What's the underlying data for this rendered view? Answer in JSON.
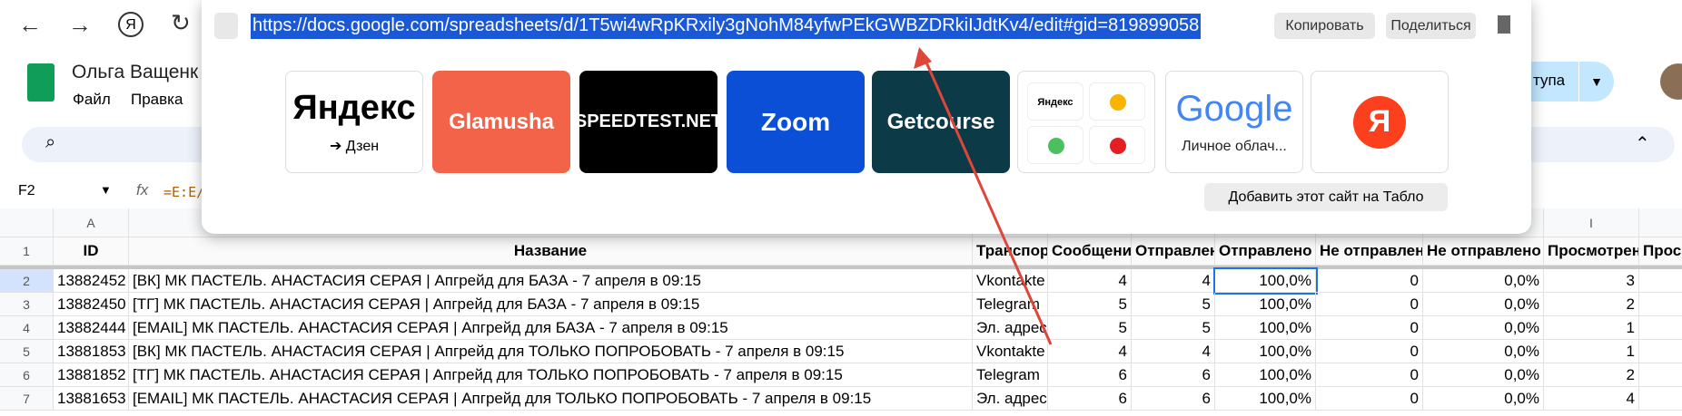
{
  "browser": {
    "url": "https://docs.google.com/spreadsheets/d/1T5wi4wRpKRxily3gNohM84yfwPEkGWBZDRkiIJdtKv4/edit#gid=819899058",
    "copy": "Копировать",
    "share": "Поделиться"
  },
  "tiles": [
    {
      "title": "Яндекс",
      "caption": "➔ Дзен"
    },
    {
      "title": "Glamusha"
    },
    {
      "title": "SPEEDTEST.NET"
    },
    {
      "title": "Zoom"
    },
    {
      "title": "Getcourse"
    },
    {
      "items": [
        "Яндекс"
      ]
    },
    {
      "title": "Google",
      "caption": "Личное облач..."
    },
    {
      "title": "Я"
    }
  ],
  "add_site": "Добавить этот сайт на Табло",
  "sheet": {
    "title": "Ольга Ващенк",
    "menu": [
      "Файл",
      "Правка"
    ],
    "access": "тупа",
    "cell_ref": "F2",
    "formula": "=E:E/",
    "columns": [
      "A",
      "I"
    ],
    "row_numbers": [
      "1",
      "2",
      "3",
      "4",
      "5",
      "6",
      "7"
    ],
    "headers": [
      "ID",
      "Название",
      "Транспорт",
      "Сообщений",
      "Отправлено",
      "Отправлено %",
      "Не отправлено",
      "Не отправлено %",
      "Просмотрено",
      "Просм"
    ],
    "rows": [
      [
        "13882452",
        "[ВК]  МК ПАСТЕЛЬ. АНАСТАСИЯ СЕРАЯ | Апгрейд для БАЗА - 7 апреля в 09:15",
        "Vkontakte",
        "4",
        "4",
        "100,0%",
        "0",
        "0,0%",
        "3"
      ],
      [
        "13882450",
        "[ТГ] МК ПАСТЕЛЬ. АНАСТАСИЯ СЕРАЯ | Апгрейд для БАЗА - 7 апреля в 09:15",
        "Telegram",
        "5",
        "5",
        "100,0%",
        "0",
        "0,0%",
        "2"
      ],
      [
        "13882444",
        "[EMAIL] МК ПАСТЕЛЬ. АНАСТАСИЯ СЕРАЯ | Апгрейд для БАЗА - 7 апреля в 09:15",
        "Эл. адрес",
        "5",
        "5",
        "100,0%",
        "0",
        "0,0%",
        "1"
      ],
      [
        "13881853",
        "[ВК]  МК ПАСТЕЛЬ. АНАСТАСИЯ СЕРАЯ | Апгрейд для ТОЛЬКО ПОПРОБОВАТЬ - 7 апреля в 09:15",
        "Vkontakte",
        "4",
        "4",
        "100,0%",
        "0",
        "0,0%",
        "1"
      ],
      [
        "13881852",
        "[ТГ] МК ПАСТЕЛЬ. АНАСТАСИЯ СЕРАЯ | Апгрейд для ТОЛЬКО ПОПРОБОВАТЬ - 7 апреля в 09:15",
        "Telegram",
        "6",
        "6",
        "100,0%",
        "0",
        "0,0%",
        "2"
      ],
      [
        "13881653",
        "[EMAIL] МК ПАСТЕЛЬ. АНАСТАСИЯ СЕРАЯ | Апгрейд для ТОЛЬКО ПОПРОБОВАТЬ - 7 апреля в 09:15",
        "Эл. адрес",
        "6",
        "6",
        "100,0%",
        "0",
        "0,0%",
        "4"
      ]
    ]
  }
}
